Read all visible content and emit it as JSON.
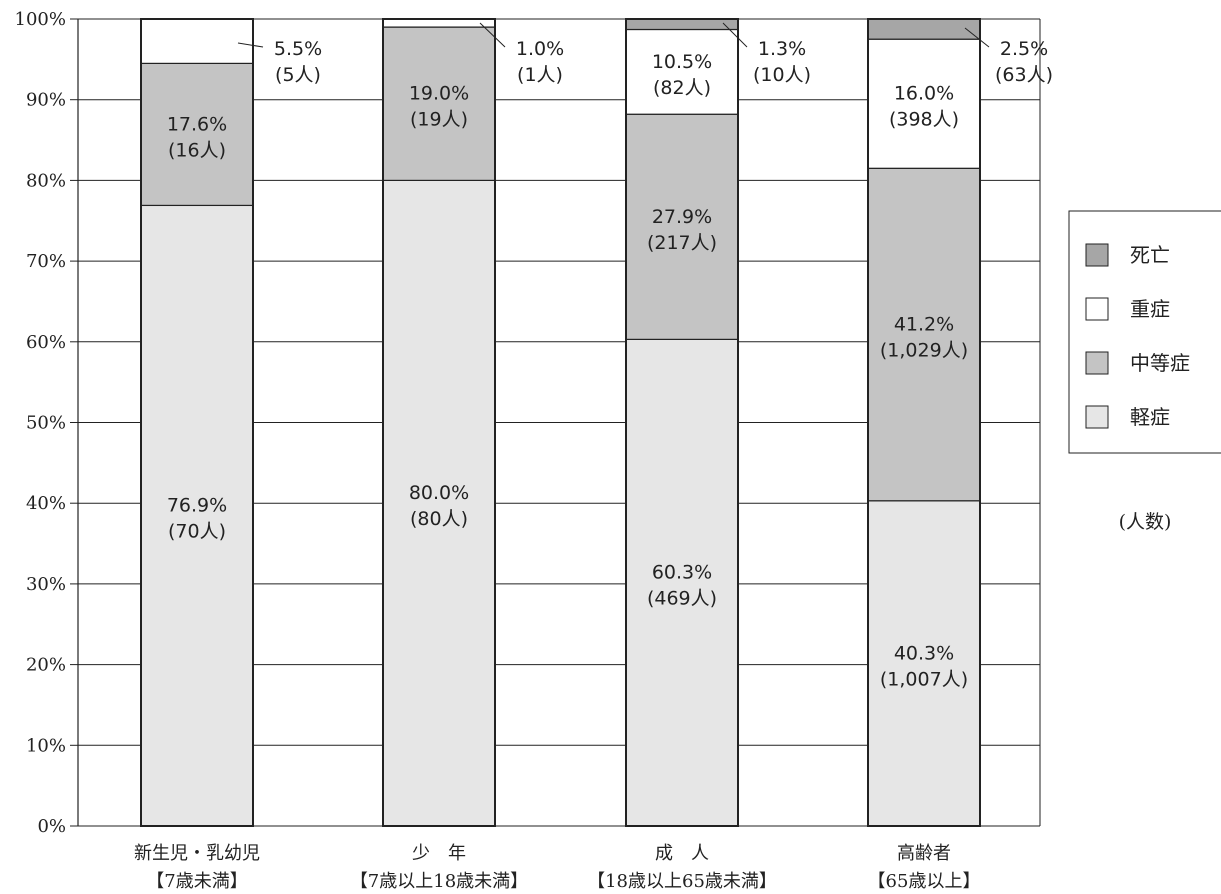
{
  "chart_data": {
    "type": "bar",
    "stacked": true,
    "categories": [
      "新生児・乳幼児",
      "少　年",
      "成　人",
      "高齢者"
    ],
    "category_sublabels": [
      "【7歳未満】",
      "【7歳以上18歳未満】",
      "【18歳以上65歳未満】",
      "【65歳以上】"
    ],
    "series": [
      {
        "name": "軽症",
        "color": "#e6e6e6",
        "values": [
          76.9,
          80.0,
          60.3,
          40.3
        ],
        "labels": [
          [
            "76.9%",
            "(70人)"
          ],
          [
            "80.0%",
            "(80人)"
          ],
          [
            "60.3%",
            "(469人)"
          ],
          [
            "40.3%",
            "(1,007人)"
          ]
        ]
      },
      {
        "name": "中等症",
        "color": "#c4c4c4",
        "values": [
          17.6,
          19.0,
          27.9,
          41.2
        ],
        "labels": [
          [
            "17.6%",
            "(16人)"
          ],
          [
            "19.0%",
            "(19人)"
          ],
          [
            "27.9%",
            "(217人)"
          ],
          [
            "41.2%",
            "(1,029人)"
          ]
        ]
      },
      {
        "name": "重症",
        "color": "#ffffff",
        "values": [
          5.5,
          1.0,
          10.5,
          16.0
        ],
        "labels": [
          [
            "5.5%",
            "(5人)"
          ],
          [
            "1.0%",
            "(1人)"
          ],
          [
            "10.5%",
            "(82人)"
          ],
          [
            "16.0%",
            "(398人)"
          ]
        ]
      },
      {
        "name": "死亡",
        "color": "#a6a6a6",
        "values": [
          0,
          0,
          1.3,
          2.5
        ],
        "labels": [
          null,
          null,
          [
            "1.3%",
            "(10人)"
          ],
          [
            "2.5%",
            "(63人)"
          ]
        ]
      }
    ],
    "ylim": [
      0,
      100
    ],
    "yticks": [
      "0%",
      "10%",
      "20%",
      "30%",
      "40%",
      "50%",
      "60%",
      "70%",
      "80%",
      "90%",
      "100%"
    ],
    "legend_order": [
      "死亡",
      "重症",
      "中等症",
      "軽症"
    ],
    "legend_position": "right",
    "unit_note": "(人数)",
    "grid": true
  }
}
